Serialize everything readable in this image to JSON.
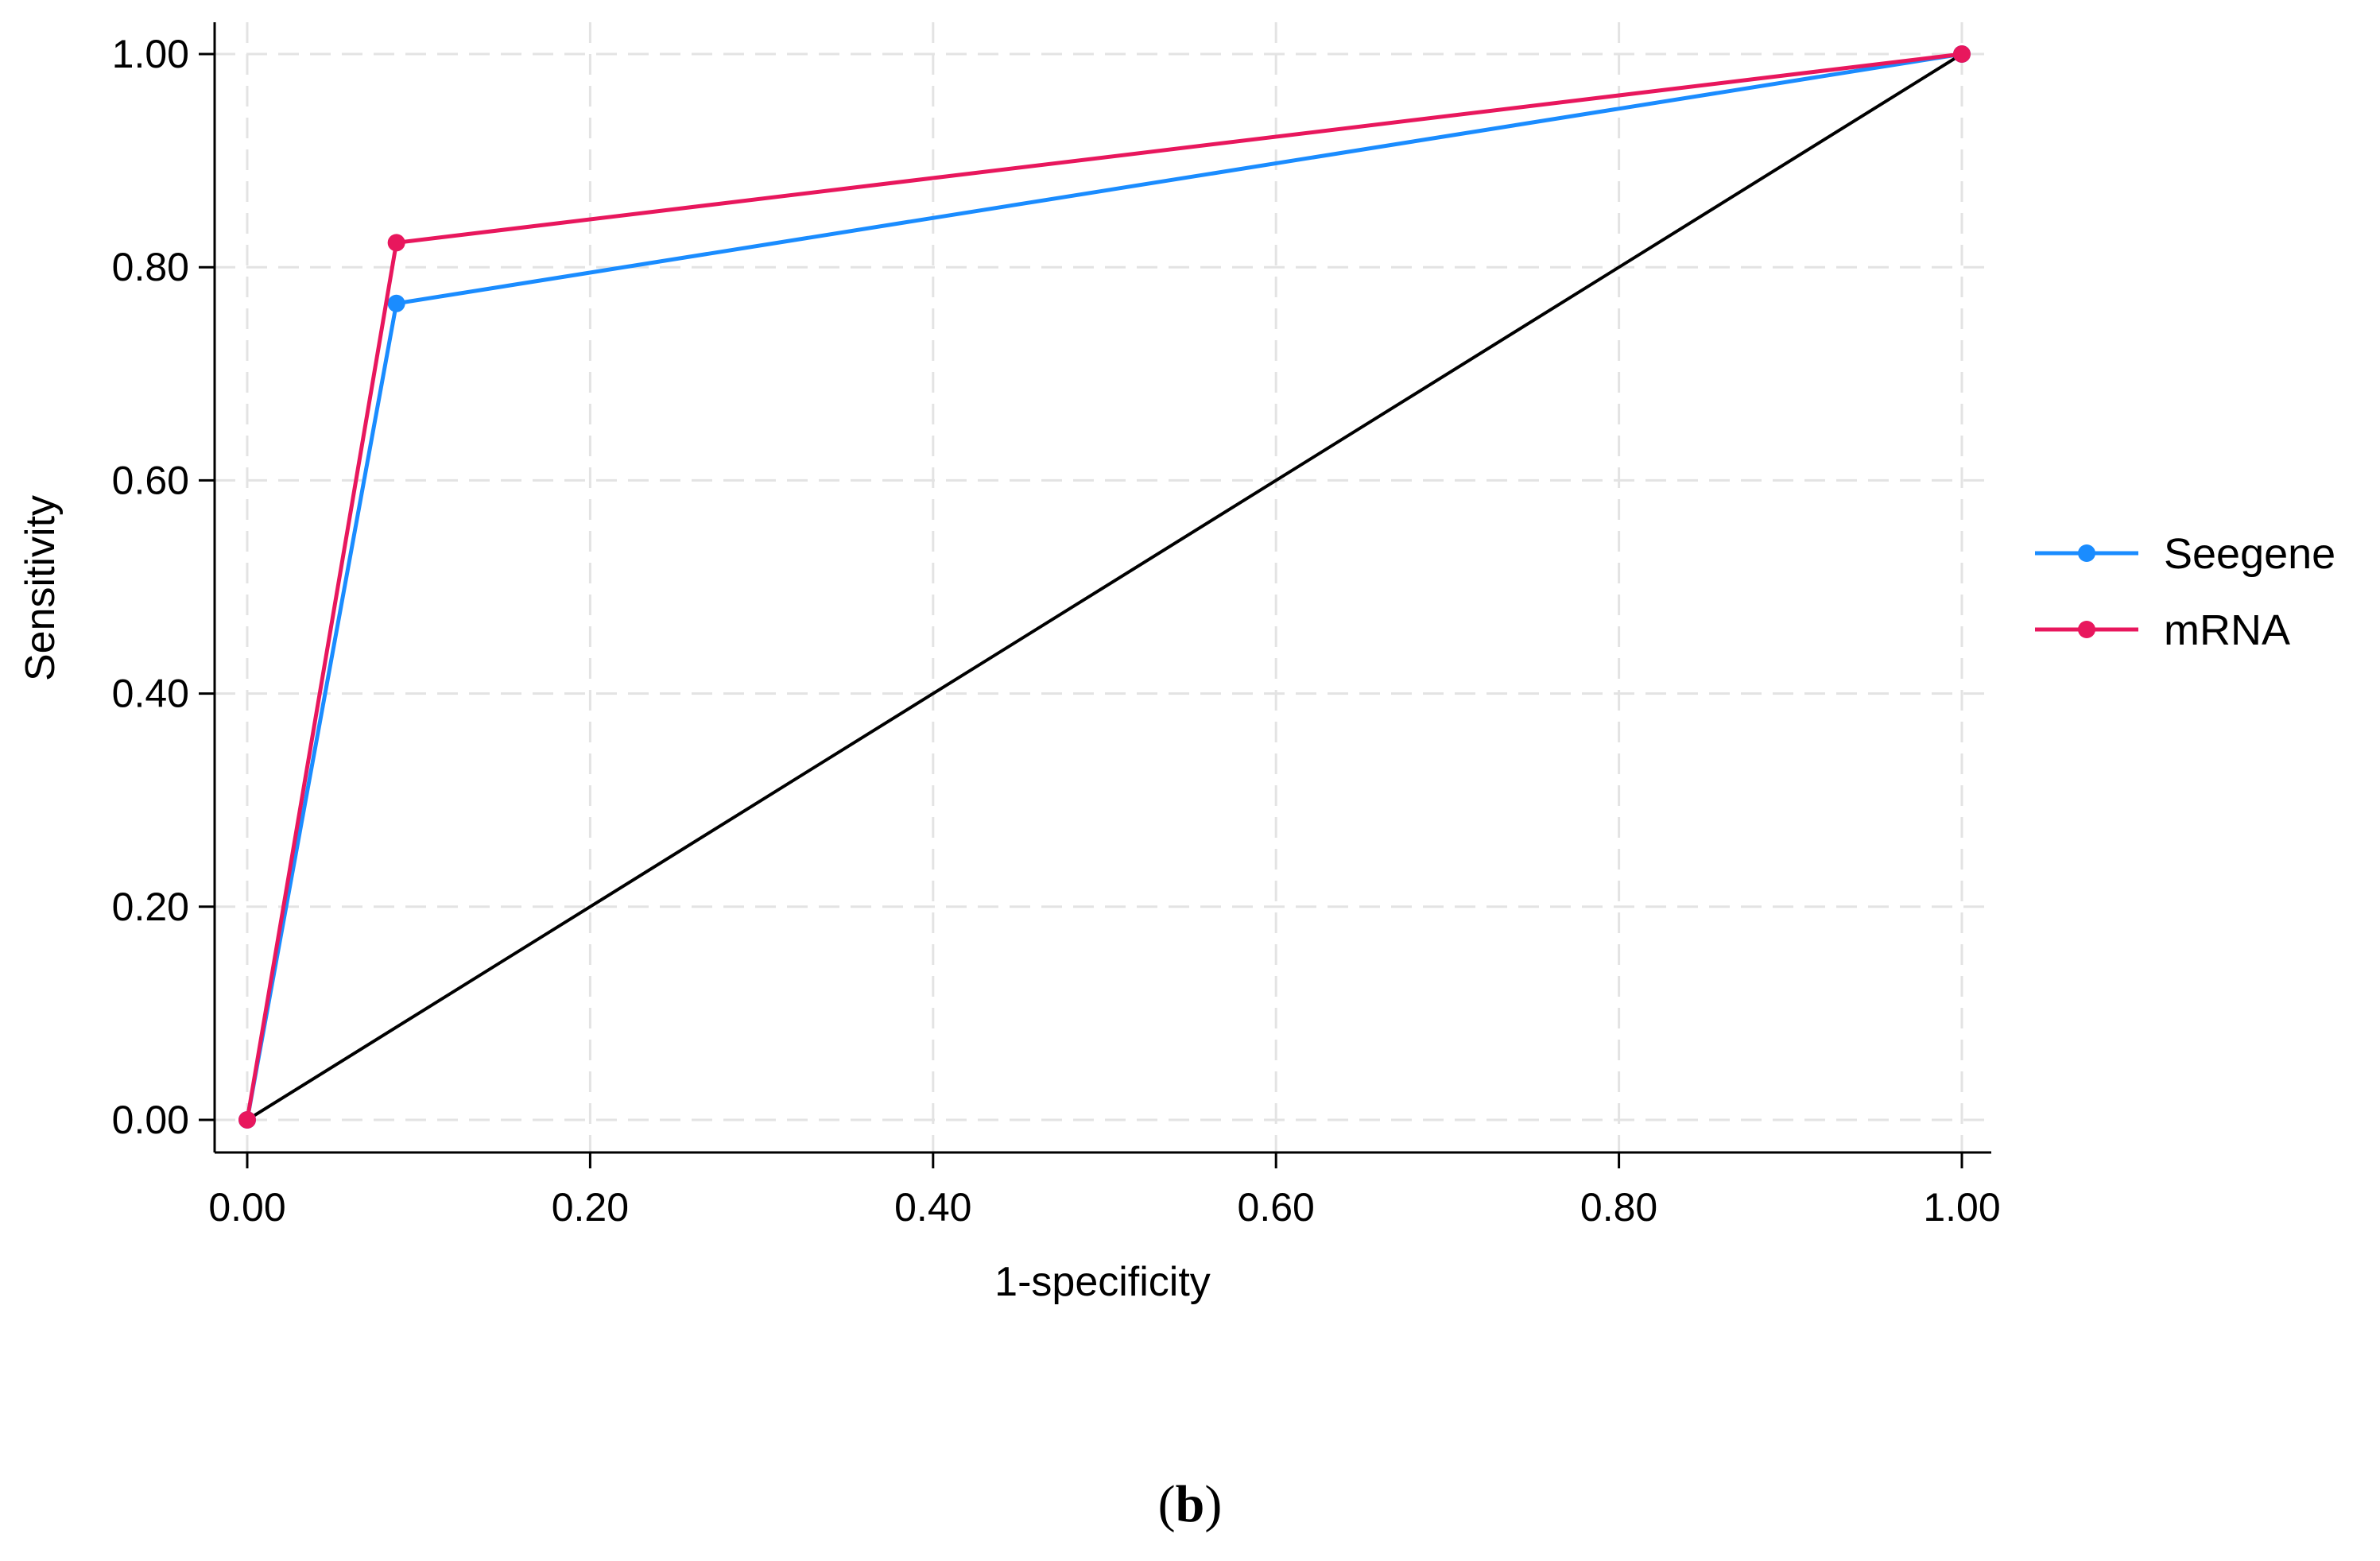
{
  "chart_data": {
    "type": "line",
    "xlabel": "1-specificity",
    "ylabel": "Sensitivity",
    "xlim": [
      0,
      1
    ],
    "ylim": [
      0,
      1
    ],
    "x_ticks": [
      "0.00",
      "0.20",
      "0.40",
      "0.60",
      "0.80",
      "1.00"
    ],
    "y_ticks": [
      "0.00",
      "0.20",
      "0.40",
      "0.60",
      "0.80",
      "1.00"
    ],
    "grid": true,
    "legend_position": "right",
    "series": [
      {
        "name": "Seegene",
        "color": "#1a8cff",
        "x": [
          0.0,
          0.087,
          1.0
        ],
        "y": [
          0.0,
          0.766,
          1.0
        ]
      },
      {
        "name": "mRNA",
        "color": "#e8175d",
        "x": [
          0.0,
          0.087,
          1.0
        ],
        "y": [
          0.0,
          0.823,
          1.0
        ]
      }
    ],
    "reference_line": {
      "color": "#000000",
      "x": [
        0,
        1
      ],
      "y": [
        0,
        1
      ]
    }
  },
  "panel_label": {
    "open": "(",
    "letter": "b",
    "close": ")"
  }
}
